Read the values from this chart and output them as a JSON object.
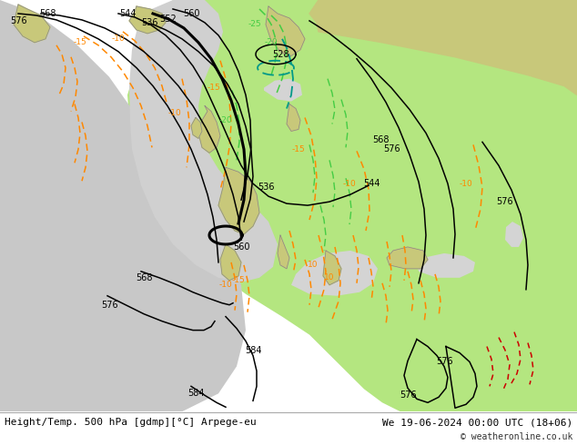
{
  "title_left": "Height/Temp. 500 hPa [gdmp][°C] Arpege-eu",
  "title_right": "We 19-06-2024 00:00 UTC (18+06)",
  "credit": "© weatheronline.co.uk",
  "bg_color": "#ffffff",
  "land_color": "#c8c87a",
  "sea_color_light": "#c8c8c8",
  "green_color": "#b4e680",
  "gray_color": "#b4b4b4",
  "tan_color": "#c8c87a",
  "white_sea": "#e8e8e8",
  "contour_black": "#000000",
  "contour_orange": "#ff8800",
  "contour_green_lt": "#44cc44",
  "contour_teal": "#009988",
  "contour_red": "#cc0000",
  "label_fs": 7,
  "title_fs": 8,
  "credit_fs": 7,
  "fig_width": 6.34,
  "fig_height": 4.9,
  "dpi": 100
}
